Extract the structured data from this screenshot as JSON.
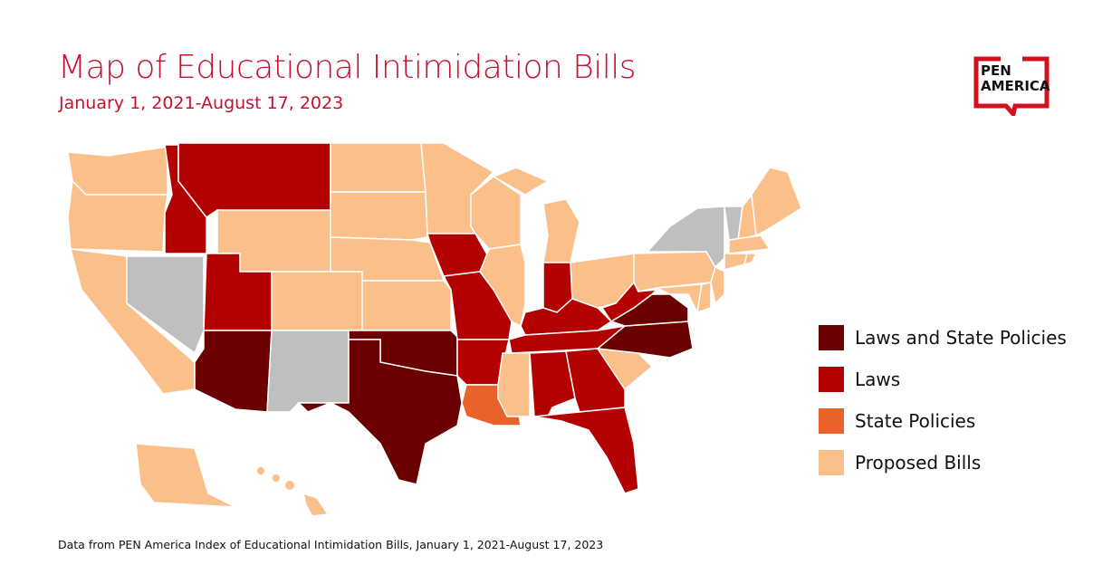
{
  "title": "Map of Educational Intimidation Bills",
  "subtitle": "January 1, 2021-August 17, 2023",
  "footer": "Data from PEN America Index of Educational Intimidation Bills, January 1, 2021-August 17, 2023",
  "logo": {
    "text_line1": "PEN",
    "text_line2": "AMERICA",
    "color": "#d2101e"
  },
  "colors": {
    "laws_and_state_policies": "#6b0000",
    "laws": "#b30000",
    "state_policies": "#e8622a",
    "proposed_bills": "#fbbf8a",
    "none": "#bfbfbf"
  },
  "legend": [
    {
      "key": "laws_and_state_policies",
      "label": "Laws and State Policies"
    },
    {
      "key": "laws",
      "label": "Laws"
    },
    {
      "key": "state_policies",
      "label": "State Policies"
    },
    {
      "key": "proposed_bills",
      "label": "Proposed Bills"
    }
  ],
  "states": {
    "AZ": "laws_and_state_policies",
    "TX": "laws_and_state_policies",
    "OK": "laws_and_state_policies",
    "VA": "laws_and_state_policies",
    "NC": "laws_and_state_policies",
    "MT": "laws",
    "ID": "laws",
    "UT": "laws",
    "IA": "laws",
    "MO": "laws",
    "AR": "laws",
    "IN": "laws",
    "KY": "laws",
    "TN": "laws",
    "WV": "laws",
    "AL": "laws",
    "GA": "laws",
    "FL": "laws",
    "LA": "state_policies",
    "NV": "none",
    "NM": "none",
    "NY": "none",
    "VT": "none",
    "WA": "proposed_bills",
    "OR": "proposed_bills",
    "CA": "proposed_bills",
    "WY": "proposed_bills",
    "CO": "proposed_bills",
    "KS": "proposed_bills",
    "NE": "proposed_bills",
    "SD": "proposed_bills",
    "ND": "proposed_bills",
    "MN": "proposed_bills",
    "WI": "proposed_bills",
    "MI": "proposed_bills",
    "IL": "proposed_bills",
    "OH": "proposed_bills",
    "PA": "proposed_bills",
    "NJ": "proposed_bills",
    "MD": "proposed_bills",
    "DE": "proposed_bills",
    "CT": "proposed_bills",
    "RI": "proposed_bills",
    "MA": "proposed_bills",
    "NH": "proposed_bills",
    "ME": "proposed_bills",
    "SC": "proposed_bills",
    "MS": "proposed_bills",
    "AK": "proposed_bills",
    "HI": "proposed_bills"
  }
}
